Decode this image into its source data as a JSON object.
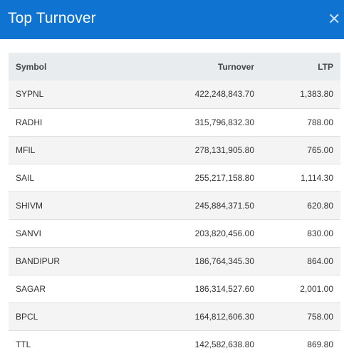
{
  "header": {
    "title": "Top Turnover",
    "close_icon": "close-icon"
  },
  "table": {
    "columns": [
      "Symbol",
      "Turnover",
      "LTP"
    ],
    "rows": [
      {
        "symbol": "SYPNL",
        "turnover": "422,248,843.70",
        "ltp": "1,383.80"
      },
      {
        "symbol": "RADHI",
        "turnover": "315,796,832.30",
        "ltp": "788.00"
      },
      {
        "symbol": "MFIL",
        "turnover": "278,131,905.80",
        "ltp": "765.00"
      },
      {
        "symbol": "SAIL",
        "turnover": "255,217,158.80",
        "ltp": "1,114.30"
      },
      {
        "symbol": "SHIVM",
        "turnover": "245,884,371.50",
        "ltp": "620.80"
      },
      {
        "symbol": "SANVI",
        "turnover": "203,820,456.00",
        "ltp": "830.00"
      },
      {
        "symbol": "BANDIPUR",
        "turnover": "186,764,345.30",
        "ltp": "864.00"
      },
      {
        "symbol": "SAGAR",
        "turnover": "186,314,527.60",
        "ltp": "2,001.00"
      },
      {
        "symbol": "BPCL",
        "turnover": "164,812,606.30",
        "ltp": "758.00"
      },
      {
        "symbol": "TTL",
        "turnover": "142,582,638.80",
        "ltp": "869.80"
      }
    ]
  },
  "colors": {
    "header_bg": "#0e73d1",
    "table_head_bg": "#e9ecef",
    "row_alt_bg": "#f4f4f4"
  }
}
